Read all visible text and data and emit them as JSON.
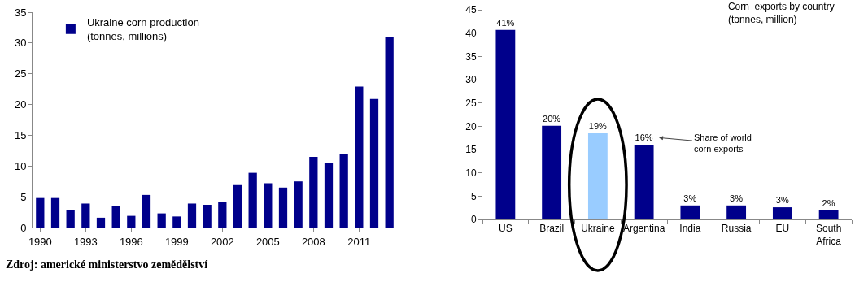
{
  "chart_data": [
    {
      "type": "bar",
      "x": [
        1990,
        1991,
        1992,
        1993,
        1994,
        1995,
        1996,
        1997,
        1998,
        1999,
        2000,
        2001,
        2002,
        2003,
        2004,
        2005,
        2006,
        2007,
        2008,
        2009,
        2010,
        2011,
        2012,
        2013
      ],
      "series": [
        {
          "name": "Ukraine corn production\n(tonnes, millions)",
          "color": "#00008b",
          "values": [
            4.8,
            4.8,
            2.9,
            3.9,
            1.6,
            3.5,
            1.9,
            5.3,
            2.3,
            1.8,
            3.9,
            3.7,
            4.2,
            6.9,
            8.9,
            7.2,
            6.5,
            7.5,
            11.5,
            10.5,
            12,
            22.9,
            20.9,
            30.9
          ]
        }
      ],
      "xlim": [
        1989.5,
        2013.5
      ],
      "xticks": [
        1990,
        1993,
        1996,
        1999,
        2002,
        2005,
        2008,
        2011
      ],
      "ylim": [
        0,
        35
      ],
      "yticks": [
        0,
        5,
        10,
        15,
        20,
        25,
        30,
        35
      ],
      "grid": false,
      "legend": "top left",
      "annotations": [
        "Zdroj: americké ministerstvo zemědělství"
      ]
    },
    {
      "type": "bar",
      "title": "Corn  exports by country\n(tonnes, million)",
      "categories": [
        "US",
        "Brazil",
        "Ukraine",
        "Argentina",
        "India",
        "Russia",
        "EU",
        "South Africa"
      ],
      "values": [
        40.7,
        20.1,
        18.5,
        16,
        3,
        3,
        2.6,
        2
      ],
      "colors": [
        "#00008b",
        "#00008b",
        "#99ccff",
        "#00008b",
        "#00008b",
        "#00008b",
        "#00008b",
        "#00008b"
      ],
      "value_labels": [
        "41%",
        "20%",
        "19%",
        "16%",
        "3%",
        "3%",
        "3%",
        "2%"
      ],
      "ylim": [
        0,
        45
      ],
      "yticks": [
        0,
        5,
        10,
        15,
        20,
        25,
        30,
        35,
        40,
        45
      ],
      "grid": false,
      "annotations": [
        "Share of world\ncorn exports"
      ]
    }
  ]
}
